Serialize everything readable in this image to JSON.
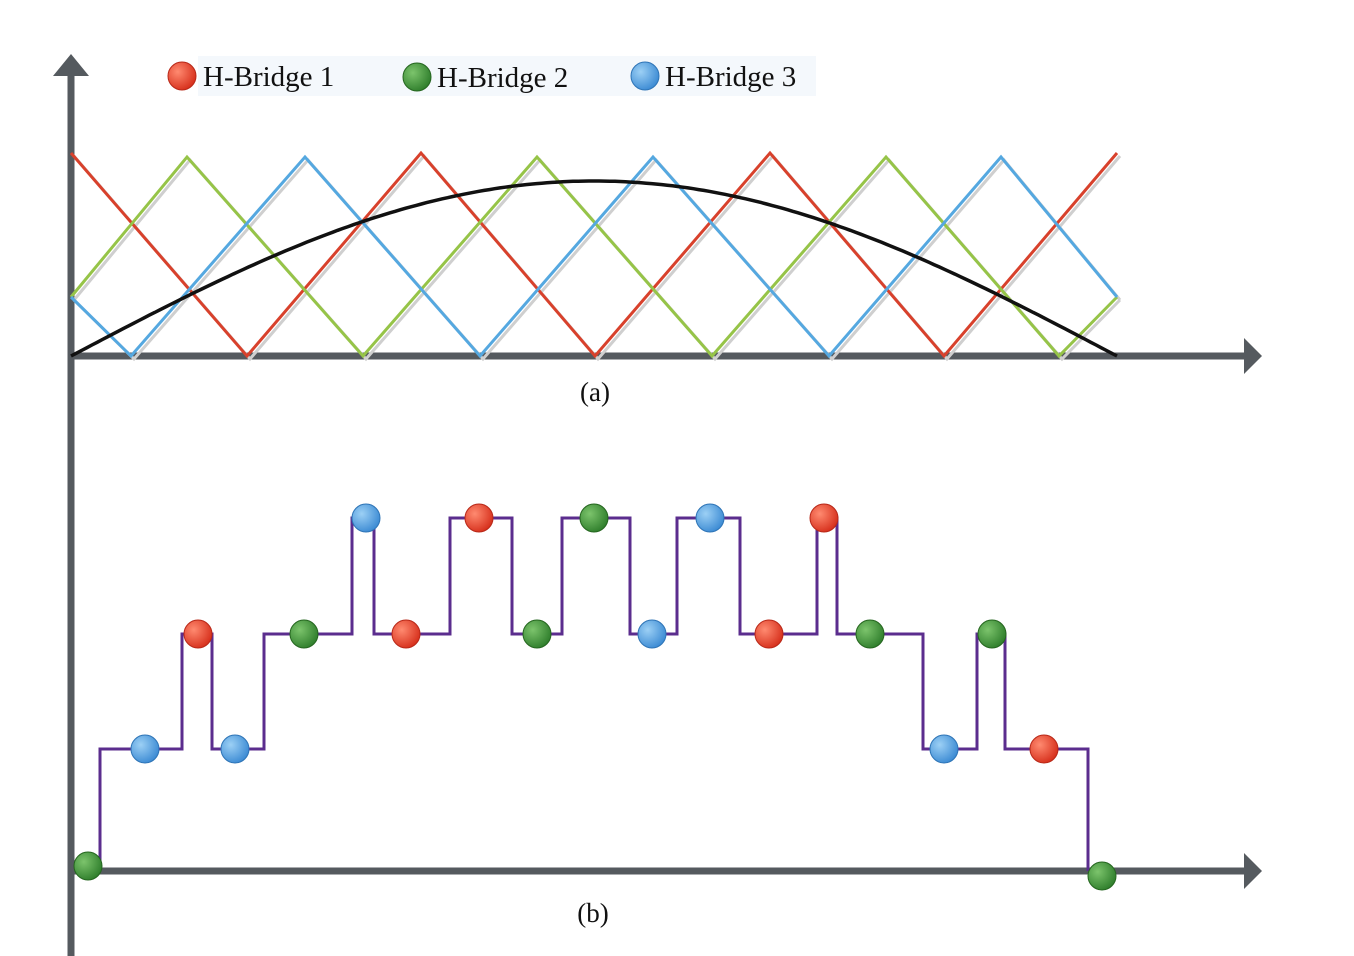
{
  "legend": [
    {
      "label": "H-Bridge 1",
      "color": "#e0402a"
    },
    {
      "label": "H-Bridge 2",
      "color": "#3f8f3a"
    },
    {
      "label": "H-Bridge 3",
      "color": "#4f9ee0"
    }
  ],
  "panel_a": {
    "caption": "(a)",
    "carrier_colors": {
      "bridge1": "#d8412c",
      "bridge2": "#96c448",
      "bridge3": "#55a8e0"
    },
    "reference_color": "#111111"
  },
  "panel_b": {
    "caption": "(b)",
    "staircase_color": "#5b2d8e",
    "levels": [
      0,
      1,
      2,
      1,
      2,
      3,
      2,
      3,
      2,
      3,
      2,
      3,
      2,
      3,
      2,
      1,
      2,
      1,
      0
    ],
    "markers": [
      {
        "bridge": "H-Bridge 2",
        "color": "#3f8f3a",
        "level": 0
      },
      {
        "bridge": "H-Bridge 3",
        "color": "#4f9ee0",
        "level": 1
      },
      {
        "bridge": "H-Bridge 1",
        "color": "#e0402a",
        "level": 2
      },
      {
        "bridge": "H-Bridge 3",
        "color": "#4f9ee0",
        "level": 1
      },
      {
        "bridge": "H-Bridge 2",
        "color": "#3f8f3a",
        "level": 2
      },
      {
        "bridge": "H-Bridge 3",
        "color": "#4f9ee0",
        "level": 3
      },
      {
        "bridge": "H-Bridge 1",
        "color": "#e0402a",
        "level": 2
      },
      {
        "bridge": "H-Bridge 1",
        "color": "#e0402a",
        "level": 3
      },
      {
        "bridge": "H-Bridge 2",
        "color": "#3f8f3a",
        "level": 2
      },
      {
        "bridge": "H-Bridge 2",
        "color": "#3f8f3a",
        "level": 3
      },
      {
        "bridge": "H-Bridge 3",
        "color": "#4f9ee0",
        "level": 2
      },
      {
        "bridge": "H-Bridge 3",
        "color": "#4f9ee0",
        "level": 3
      },
      {
        "bridge": "H-Bridge 1",
        "color": "#e0402a",
        "level": 2
      },
      {
        "bridge": "H-Bridge 1",
        "color": "#e0402a",
        "level": 3
      },
      {
        "bridge": "H-Bridge 2",
        "color": "#3f8f3a",
        "level": 2
      },
      {
        "bridge": "H-Bridge 3",
        "color": "#4f9ee0",
        "level": 1
      },
      {
        "bridge": "H-Bridge 2",
        "color": "#3f8f3a",
        "level": 2
      },
      {
        "bridge": "H-Bridge 1",
        "color": "#e0402a",
        "level": 1
      },
      {
        "bridge": "H-Bridge 2",
        "color": "#3f8f3a",
        "level": 0
      }
    ]
  }
}
